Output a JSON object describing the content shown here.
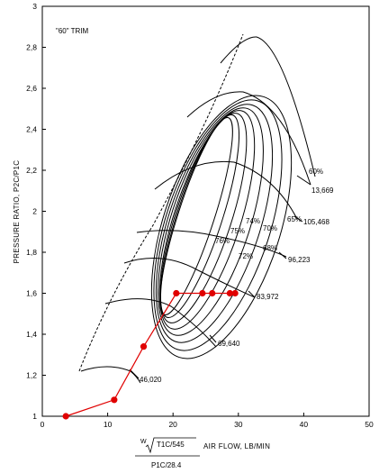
{
  "chart_data": {
    "type": "line",
    "ylabel": "PRESSURE RATIO, P2C/P1C",
    "xlabel": "AIR FLOW, LB/MIN",
    "xlabel_formula": {
      "numerator": "W",
      "sqrt_term": "T1C/545",
      "denominator": "P1C/28.4"
    },
    "annotation": "\"60\" TRIM",
    "xlim": [
      0,
      50
    ],
    "ylim": [
      1,
      3
    ],
    "x_ticks": [
      0,
      10,
      20,
      30,
      40,
      50
    ],
    "y_ticks": [
      1,
      1.2,
      1.4,
      1.6,
      1.8,
      2,
      2.2,
      2.4,
      2.6,
      2.8,
      3
    ],
    "y_tick_labels": [
      "1",
      "1,2",
      "1,4",
      "1,6",
      "1,8",
      "2",
      "2,2",
      "2,4",
      "2,6",
      "2,8",
      "3"
    ],
    "speed_line_labels": [
      "46,020",
      "69,640",
      "83,972",
      "96,223",
      "105,468",
      "13,669"
    ],
    "efficiency_labels": [
      "60%",
      "65%",
      "68%",
      "70%",
      "72%",
      "74%",
      "75%",
      "76%"
    ],
    "series": [
      {
        "values": [
          {
            "x": 3.6,
            "y": 1.0
          },
          {
            "x": 11.0,
            "y": 1.08
          },
          {
            "x": 15.5,
            "y": 1.34
          },
          {
            "x": 20.5,
            "y": 1.6
          },
          {
            "x": 24.5,
            "y": 1.6
          },
          {
            "x": 26.0,
            "y": 1.6
          },
          {
            "x": 28.7,
            "y": 1.6
          },
          {
            "x": 29.5,
            "y": 1.6
          }
        ]
      }
    ],
    "colors": {
      "operating_line": "#e00000",
      "map_lines": "#000000"
    }
  }
}
